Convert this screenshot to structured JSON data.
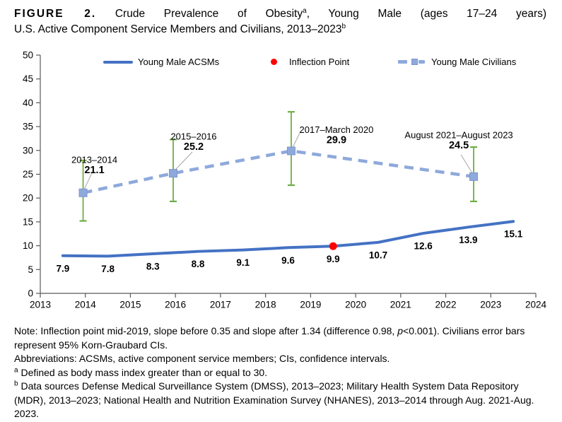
{
  "title": {
    "figure_label": "FIGURE 2.",
    "line1_a": "Crude Prevalence of Obesity",
    "sup_a": "a",
    "line1_b": ", Young Male (ages 17–24 years)",
    "line2": "U.S. Active Component Service Members and Civilians, 2013–2023",
    "sup_b": "b"
  },
  "legend": {
    "items": [
      {
        "label": "Young Male ACSMs",
        "swatch": "solid-line",
        "color": "#4472C4"
      },
      {
        "label": "Inflection Point",
        "swatch": "red-dot",
        "color": "#FF0000"
      },
      {
        "label": "Young Male Civilians",
        "swatch": "dashed-line-square",
        "color": "#8EA9DB"
      }
    ]
  },
  "chart_data": {
    "type": "line",
    "title": "Crude Prevalence of Obesity, Young Male (ages 17–24 years) U.S. Active Component Service Members and Civilians, 2013–2023",
    "xlabel": "",
    "ylabel": "",
    "x_axis": {
      "min": 2013,
      "max": 2024,
      "tick_interval": 1,
      "ticks": [
        2013,
        2014,
        2015,
        2016,
        2017,
        2018,
        2019,
        2020,
        2021,
        2022,
        2023,
        2024
      ]
    },
    "y_axis": {
      "min": 0,
      "max": 50,
      "tick_interval": 5,
      "ticks": [
        0,
        5,
        10,
        15,
        20,
        25,
        30,
        35,
        40,
        45,
        50
      ]
    },
    "grid": false,
    "legend_position": "top-inside",
    "series": [
      {
        "name": "Young Male ACSMs",
        "style": "solid",
        "color": "#4472C4",
        "x": [
          2013.5,
          2014.5,
          2015.5,
          2016.5,
          2017.5,
          2018.5,
          2019.5,
          2020.5,
          2021.5,
          2022.5,
          2023.5
        ],
        "values": [
          7.9,
          7.8,
          8.3,
          8.8,
          9.1,
          9.6,
          9.9,
          10.7,
          12.6,
          13.9,
          15.1
        ]
      },
      {
        "name": "Young Male Civilians",
        "style": "dashed",
        "marker": "square",
        "color": "#8EA9DB",
        "error_bar_color": "#70AD47",
        "error_bar_note": "95% Korn-Graubard CIs",
        "points": [
          {
            "x": 2013.95,
            "value": 21.1,
            "ci_low": 15.2,
            "ci_high": 27.9,
            "label": "2013–2014"
          },
          {
            "x": 2015.95,
            "value": 25.2,
            "ci_low": 19.3,
            "ci_high": 32.3,
            "label": "2015–2016"
          },
          {
            "x": 2018.57,
            "value": 29.9,
            "ci_low": 22.7,
            "ci_high": 38.1,
            "label": "2017–March 2020"
          },
          {
            "x": 2022.62,
            "value": 24.5,
            "ci_low": 19.3,
            "ci_high": 30.7,
            "label": "August 2021–August 2023"
          }
        ]
      }
    ],
    "inflection_point": {
      "x": 2019.5,
      "value": 9.9,
      "color": "#FF0000"
    }
  },
  "notes": {
    "note_pre": "Note: Inflection point mid-2019, slope before 0.35 and slope after 1.34 (difference 0.98, ",
    "note_italic": "p",
    "note_post": "<0.001). Civilians error bars represent 95% Korn-Graubard CIs.",
    "abbreviations": "Abbreviations: ACSMs, active component service members; CIs, confidence intervals.",
    "footnote_a_sup": "a",
    "footnote_a_text": " Defined as body mass index greater than or equal to 30.",
    "footnote_b_sup": "b",
    "footnote_b_text": " Data sources Defense Medical Surveillance System (DMSS), 2013–2023; Military Health System Data Repository (MDR), 2013–2023; National Health and Nutrition Examination Survey (NHANES), 2013–2014 through Aug. 2021-Aug. 2023."
  }
}
